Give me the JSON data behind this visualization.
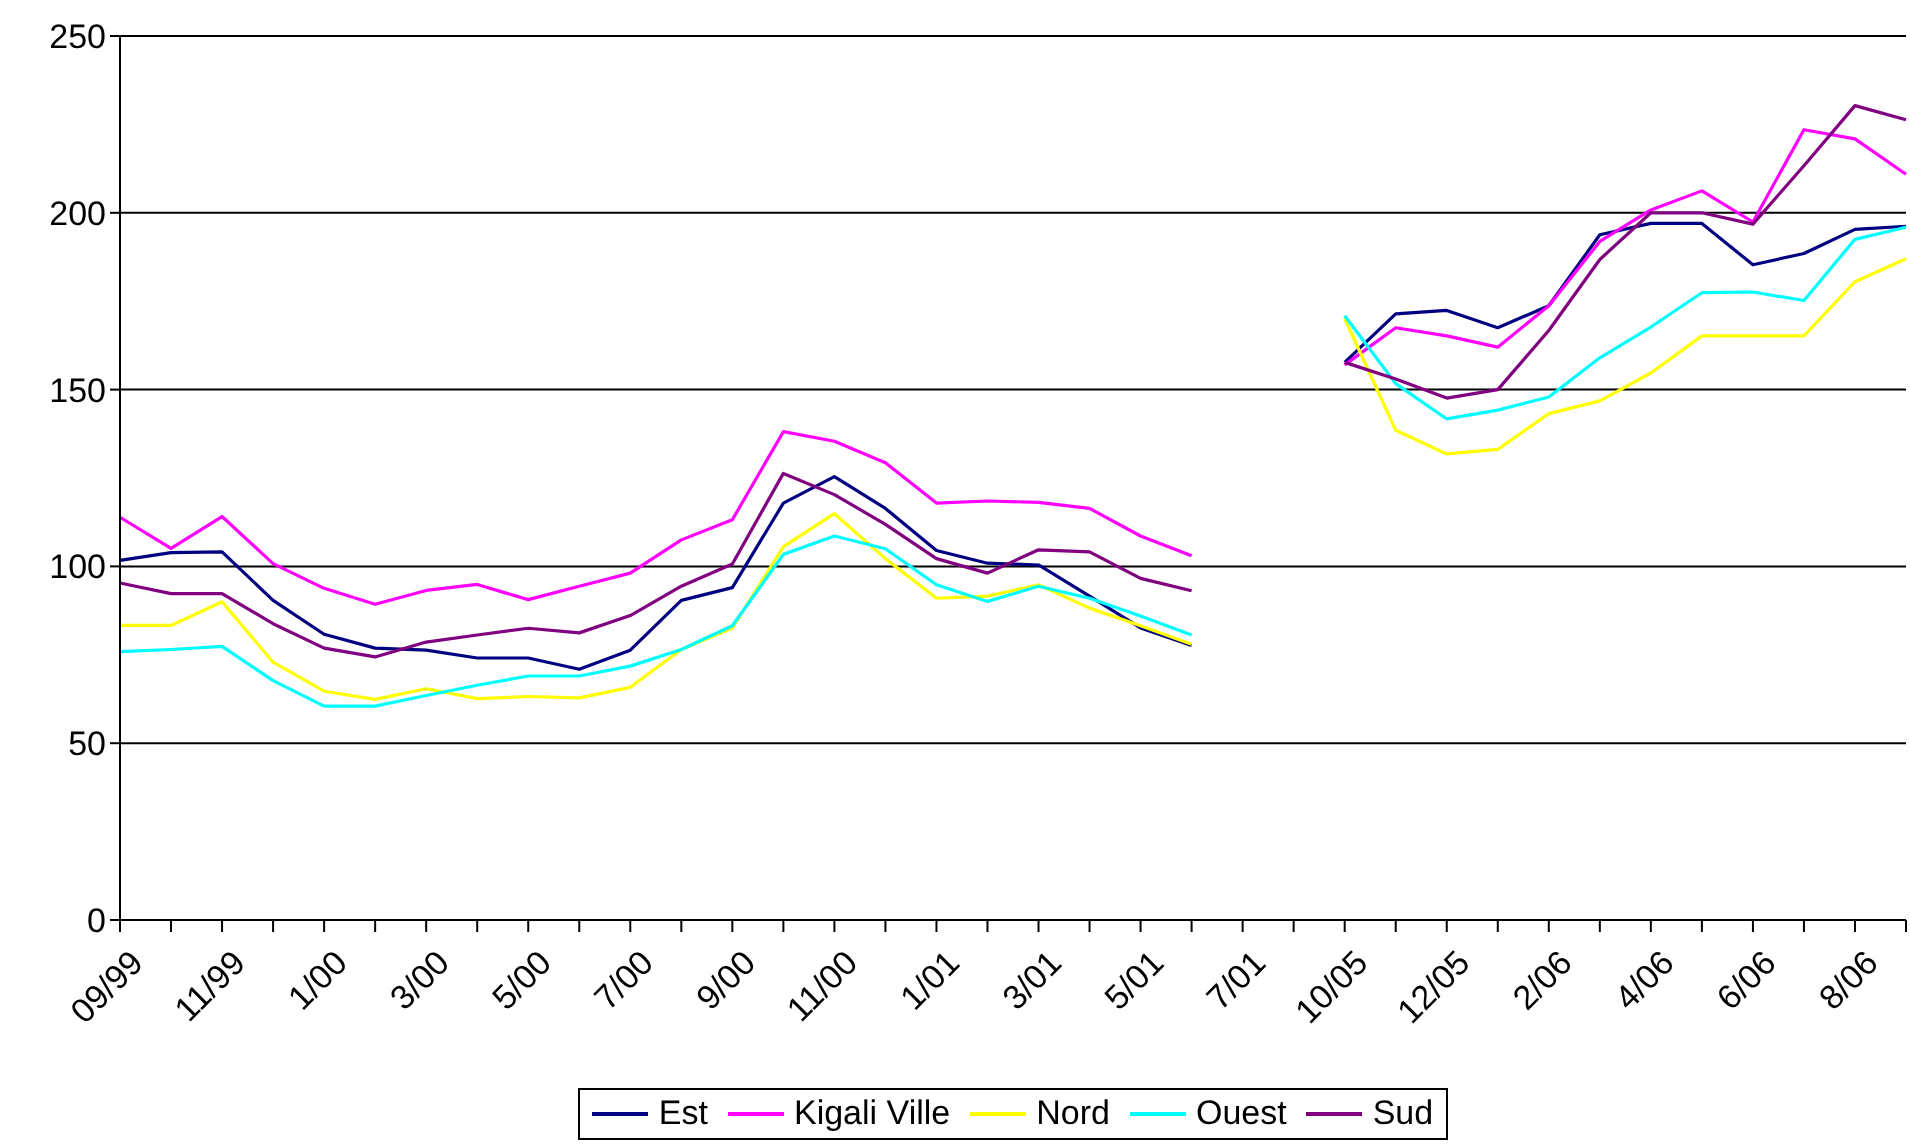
{
  "chart_data": {
    "type": "line",
    "categories": [
      "09/99",
      null,
      "11/99",
      null,
      "1/00",
      null,
      "3/00",
      null,
      "5/00",
      null,
      "7/00",
      null,
      "9/00",
      null,
      "11/00",
      null,
      "1/01",
      null,
      "3/01",
      null,
      "5/01",
      null,
      "7/01",
      null,
      "10/05",
      null,
      "12/05",
      null,
      "2/06",
      null,
      "4/06",
      null,
      "6/06",
      null,
      "8/06",
      null
    ],
    "series": [
      {
        "name": "Est",
        "color": "#000080",
        "values": [
          101.7,
          103.9,
          104.1,
          90.4,
          80.8,
          76.9,
          76.3,
          74.1,
          74.1,
          70.9,
          76.3,
          90.4,
          94.0,
          117.9,
          125.4,
          116.4,
          104.5,
          100.9,
          100.4,
          91.6,
          82.6,
          77.6,
          null,
          null,
          157.7,
          171.4,
          172.4,
          167.5,
          173.7,
          193.8,
          197.0,
          197.0,
          185.3,
          188.5,
          195.3,
          196.2
        ]
      },
      {
        "name": "Kigali Ville",
        "color": "#ff00ff",
        "values": [
          113.9,
          105.1,
          114.1,
          100.8,
          93.8,
          89.3,
          93.2,
          94.9,
          90.6,
          94.4,
          98.1,
          107.5,
          113.2,
          138.1,
          135.4,
          129.3,
          117.9,
          118.5,
          118.1,
          116.4,
          108.6,
          103.0,
          null,
          null,
          157.0,
          167.5,
          165.2,
          162.0,
          173.7,
          191.9,
          200.8,
          206.2,
          197.4,
          223.5,
          220.9,
          210.9
        ]
      },
      {
        "name": "Nord",
        "color": "#ffff00",
        "values": [
          83.3,
          83.3,
          90.0,
          72.9,
          64.7,
          62.4,
          65.4,
          62.6,
          63.2,
          62.8,
          65.8,
          76.5,
          82.6,
          105.6,
          114.9,
          102.2,
          91.0,
          91.6,
          94.8,
          88.2,
          83.2,
          78.0,
          null,
          null,
          170.1,
          138.5,
          131.8,
          133.1,
          143.2,
          146.8,
          154.7,
          165.2,
          165.2,
          165.2,
          180.5,
          187.0
        ]
      },
      {
        "name": "Ouest",
        "color": "#00ffff",
        "values": [
          75.9,
          76.5,
          77.4,
          67.7,
          60.5,
          60.5,
          63.5,
          66.4,
          69.0,
          69.0,
          71.8,
          76.5,
          83.2,
          103.4,
          108.6,
          105.0,
          94.8,
          90.1,
          94.4,
          91.0,
          86.0,
          80.6,
          null,
          null,
          170.9,
          151.7,
          141.7,
          144.2,
          147.9,
          159.0,
          167.7,
          177.4,
          177.6,
          175.2,
          192.5,
          195.9
        ]
      },
      {
        "name": "Sud",
        "color": "#800080",
        "values": [
          95.3,
          92.3,
          92.3,
          83.8,
          76.9,
          74.4,
          78.6,
          80.6,
          82.5,
          81.2,
          86.1,
          94.4,
          100.7,
          126.3,
          120.3,
          111.9,
          102.2,
          98.1,
          104.7,
          104.1,
          96.6,
          93.1,
          null,
          null,
          157.7,
          153.0,
          147.6,
          150.0,
          166.7,
          186.8,
          200.0,
          200.0,
          196.8,
          213.3,
          230.3,
          226.3
        ]
      }
    ],
    "ylim": [
      0,
      250
    ],
    "yticks": [
      0,
      50,
      100,
      150,
      200,
      250
    ],
    "grid": "y",
    "legend": "bottom",
    "marker": "none",
    "line_style": "solid"
  }
}
